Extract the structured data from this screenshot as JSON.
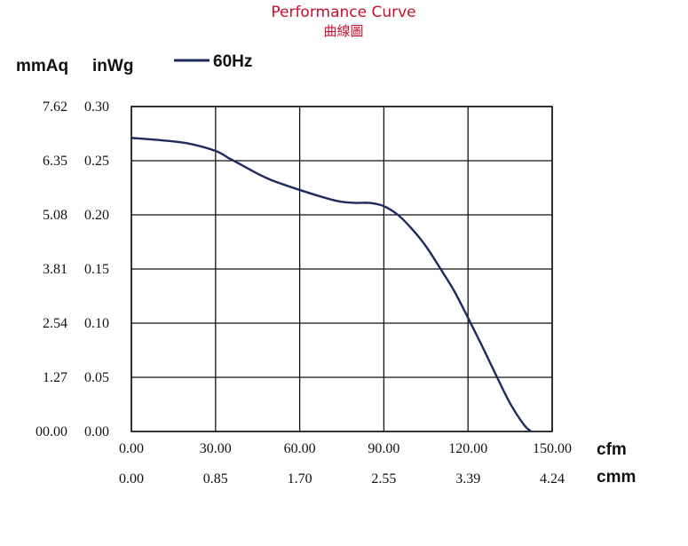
{
  "title": "Performance Curve",
  "subtitle": "曲線圖",
  "chart_data": {
    "type": "line",
    "title": "Performance Curve",
    "subtitle": "曲線圖",
    "y_unit_left": "mmAq",
    "y_unit_right": "inWg",
    "x_unit_primary": "cfm",
    "x_unit_secondary": "cmm",
    "y_ticks_mmAq": [
      "7.62",
      "6.35",
      "5.08",
      "3.81",
      "2.54",
      "1.27",
      "00.00"
    ],
    "y_ticks_inWg": [
      "0.30",
      "0.25",
      "0.20",
      "0.15",
      "0.10",
      "0.05",
      "0.00"
    ],
    "x_ticks_cfm": [
      "0.00",
      "30.00",
      "60.00",
      "90.00",
      "120.00",
      "150.00"
    ],
    "x_ticks_cmm": [
      "0.00",
      "0.85",
      "1.70",
      "2.55",
      "3.39",
      "4.24"
    ],
    "xlim": [
      0,
      150
    ],
    "ylim": [
      0,
      0.3
    ],
    "grid": true,
    "legend_position": "top-left",
    "series": [
      {
        "name": "60Hz",
        "color": "#1f2a5e",
        "x": [
          0,
          10,
          20,
          30,
          35,
          40,
          45,
          50,
          60,
          70,
          75,
          80,
          85,
          90,
          95,
          100,
          105,
          110,
          115,
          120,
          125,
          130,
          135,
          140,
          142.5
        ],
        "y": [
          0.271,
          0.269,
          0.266,
          0.259,
          0.252,
          0.245,
          0.238,
          0.232,
          0.223,
          0.215,
          0.212,
          0.211,
          0.211,
          0.208,
          0.2,
          0.187,
          0.171,
          0.151,
          0.13,
          0.105,
          0.079,
          0.052,
          0.026,
          0.006,
          0.0
        ]
      }
    ]
  }
}
